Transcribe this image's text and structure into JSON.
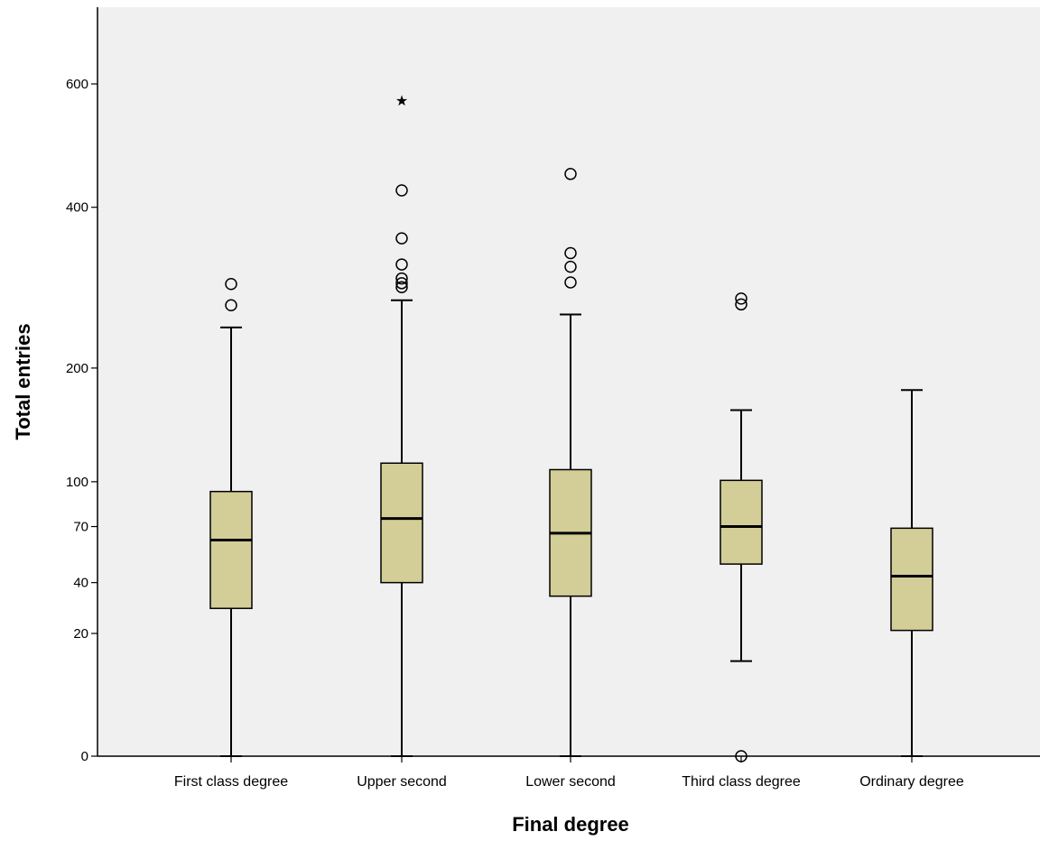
{
  "chart_data": {
    "type": "boxplot",
    "title": "",
    "xlabel": "Final degree",
    "ylabel": "Total entries",
    "y_scale": "square-root",
    "ylim": [
      0,
      720
    ],
    "yticks": [
      0,
      20,
      40,
      70,
      100,
      200,
      400,
      600
    ],
    "grid": false,
    "colors": {
      "plot_background": "#f0f0f0",
      "box_fill": "#d3ce97",
      "stroke": "#000000"
    },
    "categories": [
      "First class degree",
      "Upper second",
      "Lower second",
      "Third class degree",
      "Ordinary degree"
    ],
    "boxes": [
      {
        "category": "First class degree",
        "whisker_low": 0,
        "q1": 29,
        "median": 62,
        "q3": 93,
        "whisker_high": 244,
        "outliers": [
          270,
          296
        ],
        "extremes": []
      },
      {
        "category": "Upper second",
        "whisker_low": 0,
        "q1": 40,
        "median": 75,
        "q3": 114,
        "whisker_high": 276,
        "outliers": [
          292,
          297,
          303,
          321,
          356,
          425
        ],
        "extremes": [
          576
        ]
      },
      {
        "category": "Lower second",
        "whisker_low": 0,
        "q1": 34,
        "median": 66,
        "q3": 109,
        "whisker_high": 259,
        "outliers": [
          298,
          318,
          336,
          450
        ],
        "extremes": []
      },
      {
        "category": "Third class degree",
        "whisker_low": 12,
        "q1": 49,
        "median": 70,
        "q3": 101,
        "whisker_high": 159,
        "outliers": [
          0,
          271,
          278
        ],
        "extremes": []
      },
      {
        "category": "Ordinary degree",
        "whisker_low": 0,
        "q1": 21,
        "median": 43,
        "q3": 69,
        "whisker_high": 178,
        "outliers": [],
        "extremes": []
      }
    ]
  }
}
